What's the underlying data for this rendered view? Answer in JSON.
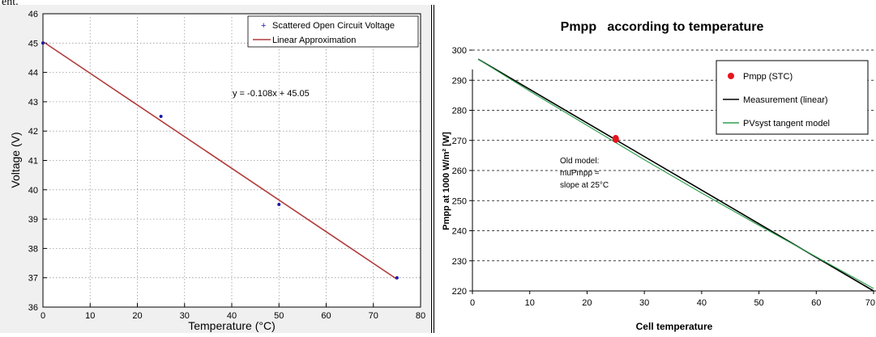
{
  "header_text": "ent.",
  "chart_data": [
    {
      "type": "scatter",
      "title": "",
      "xlabel": "Temperature (°C)",
      "ylabel": "Voltage (V)",
      "xlim": [
        0,
        80
      ],
      "ylim": [
        36,
        46
      ],
      "xticks": [
        "0",
        "10",
        "20",
        "30",
        "40",
        "50",
        "60",
        "70",
        "80"
      ],
      "yticks": [
        "36",
        "37",
        "38",
        "39",
        "40",
        "41",
        "42",
        "43",
        "44",
        "45",
        "46"
      ],
      "grid": true,
      "legend_position": "top-right",
      "series": [
        {
          "name": "Scattered Open Circuit Voltage",
          "kind": "scatter",
          "color": "#1a1aa8",
          "x": [
            0,
            25,
            50,
            75
          ],
          "y": [
            45.0,
            42.5,
            39.5,
            37.0
          ]
        },
        {
          "name": "Linear Approximation",
          "kind": "line",
          "color": "#b23a3a",
          "x": [
            0,
            75
          ],
          "y": [
            45.05,
            36.95
          ]
        }
      ],
      "annotation": "y = -0.108x + 45.05"
    },
    {
      "type": "line",
      "title": "Pmpp   according to temperature",
      "xlabel": "Cell temperature",
      "ylabel": "Pmpp at 1000 W/m²  [W]",
      "xlim": [
        0,
        70
      ],
      "ylim": [
        220,
        300
      ],
      "xticks": [
        "0",
        "10",
        "20",
        "30",
        "40",
        "50",
        "60",
        "70"
      ],
      "yticks": [
        "220",
        "230",
        "240",
        "250",
        "260",
        "270",
        "280",
        "290",
        "300"
      ],
      "grid": "horizontal-dashed",
      "legend_position": "top-right",
      "series": [
        {
          "name": "Pmpp (STC)",
          "kind": "point",
          "color": "#e8141e",
          "x": [
            25
          ],
          "y": [
            270.5
          ]
        },
        {
          "name": "Measurement (linear)",
          "kind": "line",
          "color": "#000000",
          "x": [
            1,
            70
          ],
          "y": [
            297,
            220
          ]
        },
        {
          "name": "PVsyst tangent model",
          "kind": "line",
          "color": "#2e9e4f",
          "x": [
            1,
            10,
            20,
            30,
            40,
            50,
            60,
            70
          ],
          "y": [
            297.0,
            286.4,
            275.0,
            263.6,
            252.5,
            241.8,
            231.3,
            220.8
          ]
        }
      ],
      "annotation": [
        "Old model:",
        "muPmpp =",
        "slope at 25°C"
      ]
    }
  ]
}
